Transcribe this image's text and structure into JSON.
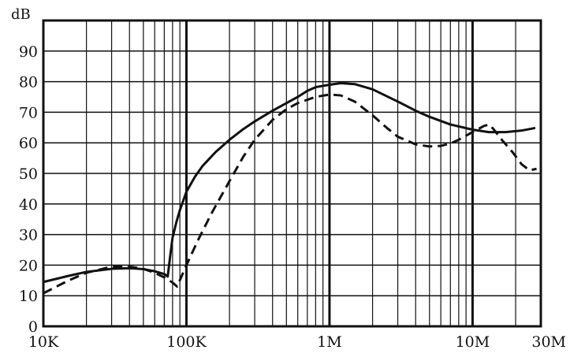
{
  "chart_data": {
    "type": "line",
    "title": "",
    "xlabel": "",
    "ylabel": "dB",
    "x_scale": "log",
    "xlim": [
      10000,
      30000000
    ],
    "ylim": [
      0,
      100
    ],
    "grid": true,
    "legend": "none",
    "x_major_ticks": [
      {
        "value": 10000,
        "label": "10K"
      },
      {
        "value": 100000,
        "label": "100K"
      },
      {
        "value": 1000000,
        "label": "1M"
      },
      {
        "value": 10000000,
        "label": "10M"
      },
      {
        "value": 30000000,
        "label": "30M"
      }
    ],
    "y_ticks": [
      {
        "value": 0,
        "label": "0"
      },
      {
        "value": 10,
        "label": "10"
      },
      {
        "value": 20,
        "label": "20"
      },
      {
        "value": 30,
        "label": "30"
      },
      {
        "value": 40,
        "label": "40"
      },
      {
        "value": 50,
        "label": "50"
      },
      {
        "value": 60,
        "label": "60"
      },
      {
        "value": 70,
        "label": "70"
      },
      {
        "value": 80,
        "label": "80"
      },
      {
        "value": 90,
        "label": "90"
      }
    ],
    "series": [
      {
        "style": "solid",
        "color": "#111111",
        "points": [
          [
            10000,
            14.5
          ],
          [
            15000,
            16.5
          ],
          [
            20000,
            17.8
          ],
          [
            30000,
            18.8
          ],
          [
            40000,
            19.0
          ],
          [
            50000,
            18.7
          ],
          [
            60000,
            18.0
          ],
          [
            70000,
            17.1
          ],
          [
            74000,
            16.3
          ],
          [
            77000,
            23.0
          ],
          [
            80000,
            29.0
          ],
          [
            85000,
            34.0
          ],
          [
            90000,
            38.0
          ],
          [
            100000,
            44.0
          ],
          [
            115000,
            49.0
          ],
          [
            130000,
            52.5
          ],
          [
            160000,
            57.0
          ],
          [
            200000,
            61.0
          ],
          [
            250000,
            64.5
          ],
          [
            300000,
            67.0
          ],
          [
            400000,
            70.5
          ],
          [
            500000,
            73.0
          ],
          [
            600000,
            75.0
          ],
          [
            700000,
            77.0
          ],
          [
            800000,
            78.2
          ],
          [
            1000000,
            79.0
          ],
          [
            1200000,
            79.5
          ],
          [
            1500000,
            79.2
          ],
          [
            2000000,
            77.5
          ],
          [
            3000000,
            73.5
          ],
          [
            4000000,
            70.5
          ],
          [
            5000000,
            68.5
          ],
          [
            7000000,
            66.0
          ],
          [
            10000000,
            64.3
          ],
          [
            13000000,
            63.5
          ],
          [
            17000000,
            63.5
          ],
          [
            22000000,
            64.0
          ],
          [
            27000000,
            64.8
          ]
        ]
      },
      {
        "style": "dashed",
        "color": "#111111",
        "points": [
          [
            10000,
            10.8
          ],
          [
            15000,
            15.0
          ],
          [
            20000,
            17.5
          ],
          [
            30000,
            19.5
          ],
          [
            40000,
            19.5
          ],
          [
            50000,
            18.8
          ],
          [
            60000,
            17.5
          ],
          [
            70000,
            16.0
          ],
          [
            80000,
            14.3
          ],
          [
            86000,
            13.0
          ],
          [
            100000,
            20.0
          ],
          [
            120000,
            28.0
          ],
          [
            150000,
            37.0
          ],
          [
            200000,
            47.5
          ],
          [
            250000,
            55.5
          ],
          [
            300000,
            61.0
          ],
          [
            400000,
            67.5
          ],
          [
            500000,
            71.0
          ],
          [
            600000,
            73.0
          ],
          [
            800000,
            75.0
          ],
          [
            1000000,
            75.8
          ],
          [
            1200000,
            75.5
          ],
          [
            1500000,
            73.5
          ],
          [
            2000000,
            69.0
          ],
          [
            2500000,
            65.0
          ],
          [
            3000000,
            62.0
          ],
          [
            4000000,
            59.5
          ],
          [
            5000000,
            58.8
          ],
          [
            6000000,
            59.0
          ],
          [
            7000000,
            59.8
          ],
          [
            8000000,
            61.0
          ],
          [
            10000000,
            63.5
          ],
          [
            12000000,
            65.5
          ],
          [
            13000000,
            66.0
          ],
          [
            14000000,
            64.5
          ],
          [
            16000000,
            61.0
          ],
          [
            19000000,
            57.0
          ],
          [
            22000000,
            53.0
          ],
          [
            25000000,
            51.0
          ],
          [
            28000000,
            51.5
          ]
        ]
      }
    ]
  }
}
